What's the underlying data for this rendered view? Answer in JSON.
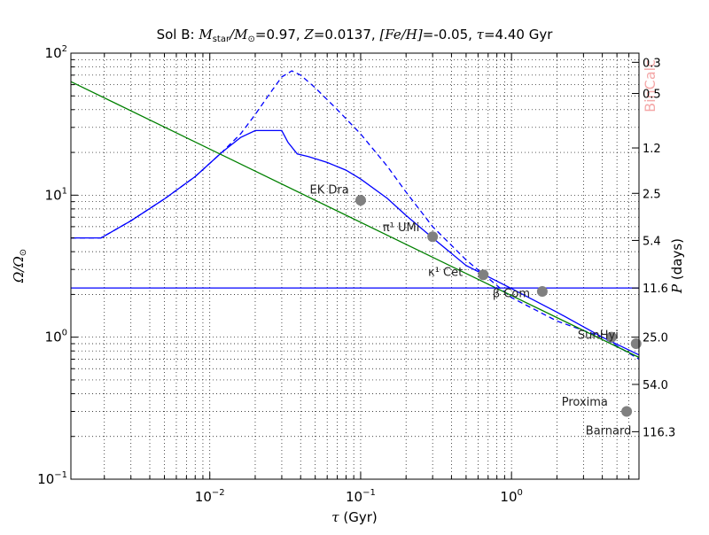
{
  "chart_data": {
    "type": "line",
    "title": {
      "prefix": "Sol B: ",
      "mstar": "M",
      "mstar_sub": "star",
      "msun": "/M",
      "msun_sub": "⊙",
      "mval": "=0.97, ",
      "z": "Z",
      "zval": "=0.0137, ",
      "feh": "[Fe/H]",
      "fehval": "=-0.05, ",
      "tau": "τ",
      "tauval": "=4.40 Gyr"
    },
    "xlabel": {
      "sym": "τ",
      "text": " (Gyr)"
    },
    "ylabel": {
      "sym": "Ω/Ω",
      "sub": "⊙"
    },
    "y2label": {
      "sym": "P",
      "text": " (days)"
    },
    "x_scale": "log",
    "y_scale": "log",
    "xlim": [
      0.0012,
      7
    ],
    "ylim": [
      0.1,
      100
    ],
    "x_ticks": [
      {
        "value": 0.01,
        "base": "10",
        "exp": "−2"
      },
      {
        "value": 0.1,
        "base": "10",
        "exp": "−1"
      },
      {
        "value": 1,
        "base": "10",
        "exp": "0"
      }
    ],
    "y_ticks": [
      {
        "value": 0.1,
        "base": "10",
        "exp": "−1"
      },
      {
        "value": 1,
        "base": "10",
        "exp": "0"
      },
      {
        "value": 10,
        "base": "10",
        "exp": "1"
      },
      {
        "value": 100,
        "base": "10",
        "exp": "2"
      }
    ],
    "right_ticks": [
      {
        "omega": 86.2,
        "label": "0.3"
      },
      {
        "omega": 52.0,
        "label": "0.5"
      },
      {
        "omega": 21.5,
        "label": "1.2"
      },
      {
        "omega": 10.3,
        "label": "2.5"
      },
      {
        "omega": 4.8,
        "label": "5.4"
      },
      {
        "omega": 2.22,
        "label": "11.6"
      },
      {
        "omega": 1.0,
        "label": "25.0"
      },
      {
        "omega": 0.465,
        "label": "54.0"
      },
      {
        "omega": 0.216,
        "label": "116.3"
      }
    ],
    "grid": true,
    "watermark": "BinCalc",
    "series": [
      {
        "style": "solid",
        "color": "#0000ff",
        "x": [
          0.0012,
          0.0019,
          0.003,
          0.005,
          0.008,
          0.012,
          0.016,
          0.02,
          0.025,
          0.03,
          0.033,
          0.038,
          0.045,
          0.06,
          0.08,
          0.1,
          0.15,
          0.2,
          0.3,
          0.5,
          1.0,
          2.0,
          4.0,
          7.0
        ],
        "y": [
          5.0,
          5.0,
          6.6,
          9.4,
          13.5,
          20.0,
          25.5,
          28.5,
          28.5,
          28.5,
          23.5,
          19.5,
          18.7,
          17.0,
          15.0,
          13.0,
          9.5,
          7.2,
          5.0,
          3.2,
          2.2,
          1.5,
          1.0,
          0.75
        ]
      },
      {
        "style": "dashed",
        "color": "#0000ff",
        "x": [
          0.0012,
          0.0019,
          0.003,
          0.005,
          0.008,
          0.012,
          0.016,
          0.02,
          0.025,
          0.03,
          0.035,
          0.04,
          0.05,
          0.07,
          0.1,
          0.15,
          0.2,
          0.3,
          0.5,
          1.0,
          2.0,
          4.0,
          7.0
        ],
        "y": [
          5.0,
          5.0,
          6.6,
          9.4,
          13.5,
          20.0,
          27.0,
          37.0,
          52.0,
          68.0,
          75.0,
          70.0,
          57.0,
          40.0,
          27.0,
          16.0,
          10.5,
          6.0,
          3.5,
          1.9,
          1.3,
          1.0,
          0.7
        ]
      },
      {
        "style": "solid",
        "color": "#008000",
        "x": [
          0.0012,
          7.0
        ],
        "y": [
          63.0,
          0.72
        ]
      },
      {
        "style": "solid",
        "color": "#0000ff",
        "x": [
          0.0012,
          7.0
        ],
        "y": [
          2.22,
          2.22
        ]
      }
    ],
    "points": [
      {
        "name": "EK Dra",
        "x": 0.1,
        "y": 9.2
      },
      {
        "name": "π¹ UMi",
        "x": 0.3,
        "y": 5.1
      },
      {
        "name": "κ¹ Cet",
        "x": 0.65,
        "y": 2.75
      },
      {
        "name": "β Com",
        "x": 1.6,
        "y": 2.1
      },
      {
        "name": "Sun",
        "x": 4.6,
        "y": 1.0
      },
      {
        "name": "Hyi",
        "x": 6.7,
        "y": 0.9
      },
      {
        "name": "Proxima",
        "x": 5.8,
        "y": 0.3
      },
      {
        "name": "Barnard",
        "x": null,
        "y": null
      }
    ],
    "point_color": "#808080"
  }
}
